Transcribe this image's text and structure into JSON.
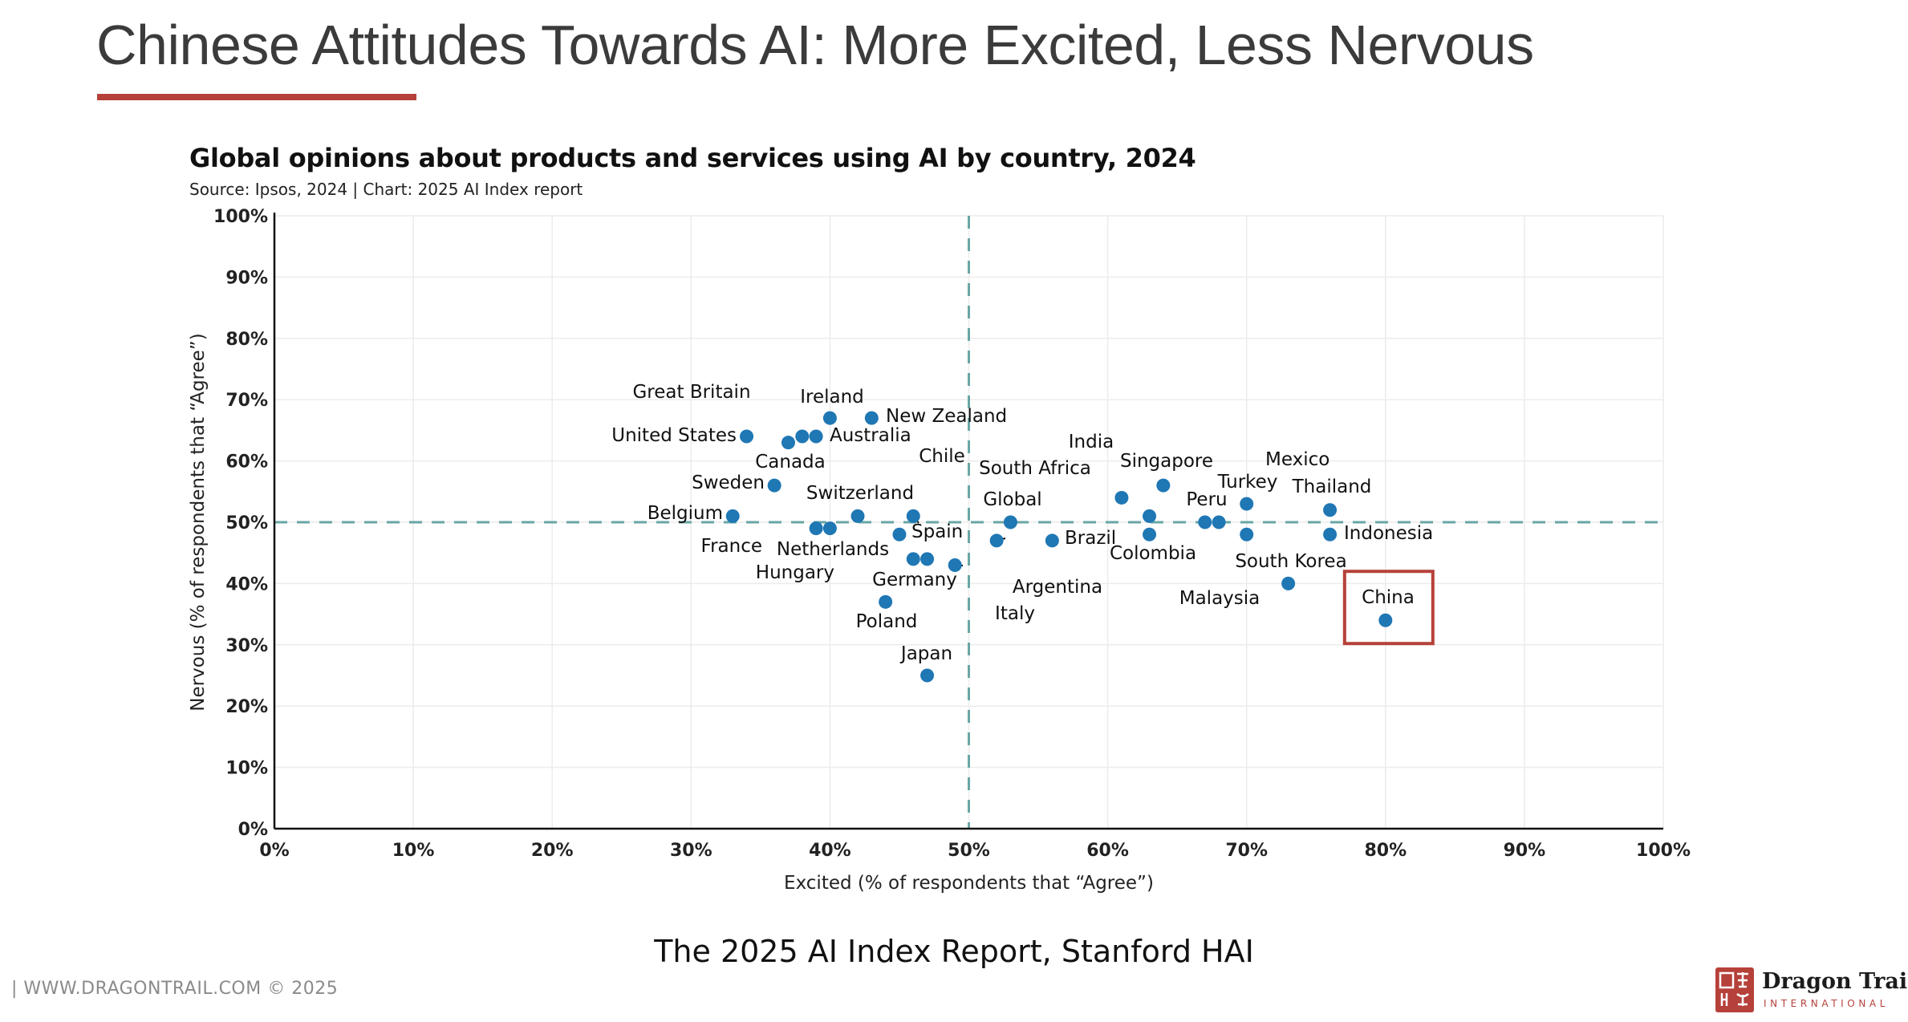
{
  "slide": {
    "title": "Chinese Attitudes Towards AI: More Excited, Less Nervous",
    "caption": "The 2025 AI Index Report, Stanford HAI",
    "footer_url": "| WWW.DRAGONTRAIL.COM ©  2025",
    "brand": {
      "name": "Dragon Trail",
      "sub": "INTERNATIONAL"
    },
    "colors": {
      "accent": "#b5413a",
      "point": "#1f77b4",
      "reference": "#6aa6a6"
    }
  },
  "chart_data": {
    "type": "scatter",
    "title": "Global opinions about products and services using AI by country, 2024",
    "source": "Source: Ipsos, 2024 | Chart: 2025 AI Index report",
    "xlabel": "Excited (% of respondents that “Agree”)",
    "ylabel": "Nervous (% of respondents that “Agree”)",
    "xlim": [
      0,
      100
    ],
    "ylim": [
      0,
      100
    ],
    "x_ticks": [
      "0%",
      "10%",
      "20%",
      "30%",
      "40%",
      "50%",
      "60%",
      "70%",
      "80%",
      "90%",
      "100%"
    ],
    "y_ticks": [
      "0%",
      "10%",
      "20%",
      "30%",
      "40%",
      "50%",
      "60%",
      "70%",
      "80%",
      "90%",
      "100%"
    ],
    "reference_lines": {
      "x": 50,
      "y": 50
    },
    "highlight": "China",
    "points": [
      {
        "label": "United States",
        "x": 34,
        "y": 64
      },
      {
        "label": "Great Britain",
        "x": 38,
        "y": 64
      },
      {
        "label": "Canada",
        "x": 37,
        "y": 63
      },
      {
        "label": "Australia",
        "x": 39,
        "y": 64
      },
      {
        "label": "Ireland",
        "x": 40,
        "y": 67
      },
      {
        "label": "New Zealand",
        "x": 43,
        "y": 67
      },
      {
        "label": "Sweden",
        "x": 36,
        "y": 56
      },
      {
        "label": "Belgium",
        "x": 33,
        "y": 51
      },
      {
        "label": "France",
        "x": 39,
        "y": 49
      },
      {
        "label": "Netherlands",
        "x": 40,
        "y": 49
      },
      {
        "label": "Switzerland",
        "x": 42,
        "y": 51
      },
      {
        "label": "Chile",
        "x": 46,
        "y": 51
      },
      {
        "label": "Spain",
        "x": 45,
        "y": 48
      },
      {
        "label": "Hungary",
        "x": 46,
        "y": 44
      },
      {
        "label": "Germany",
        "x": 47,
        "y": 44
      },
      {
        "label": "Italy",
        "x": 49,
        "y": 43
      },
      {
        "label": "Poland",
        "x": 44,
        "y": 37
      },
      {
        "label": "Japan",
        "x": 47,
        "y": 25
      },
      {
        "label": "Argentina",
        "x": 52,
        "y": 47
      },
      {
        "label": "Global",
        "x": 53,
        "y": 50
      },
      {
        "label": "Brazil",
        "x": 56,
        "y": 47
      },
      {
        "label": "South Africa",
        "x": 61,
        "y": 54
      },
      {
        "label": "India",
        "x": 63,
        "y": 51
      },
      {
        "label": "Colombia",
        "x": 63,
        "y": 48
      },
      {
        "label": "Singapore",
        "x": 64,
        "y": 56
      },
      {
        "label": "Peru",
        "x": 67,
        "y": 50
      },
      {
        "label": "Malaysia",
        "x": 68,
        "y": 50
      },
      {
        "label": "Turkey",
        "x": 70,
        "y": 53
      },
      {
        "label": "Mexico",
        "x": 70,
        "y": 48
      },
      {
        "label": "Thailand",
        "x": 76,
        "y": 52
      },
      {
        "label": "Indonesia",
        "x": 76,
        "y": 48
      },
      {
        "label": "South Korea",
        "x": 73,
        "y": 40
      },
      {
        "label": "China",
        "x": 80,
        "y": 34
      }
    ]
  }
}
